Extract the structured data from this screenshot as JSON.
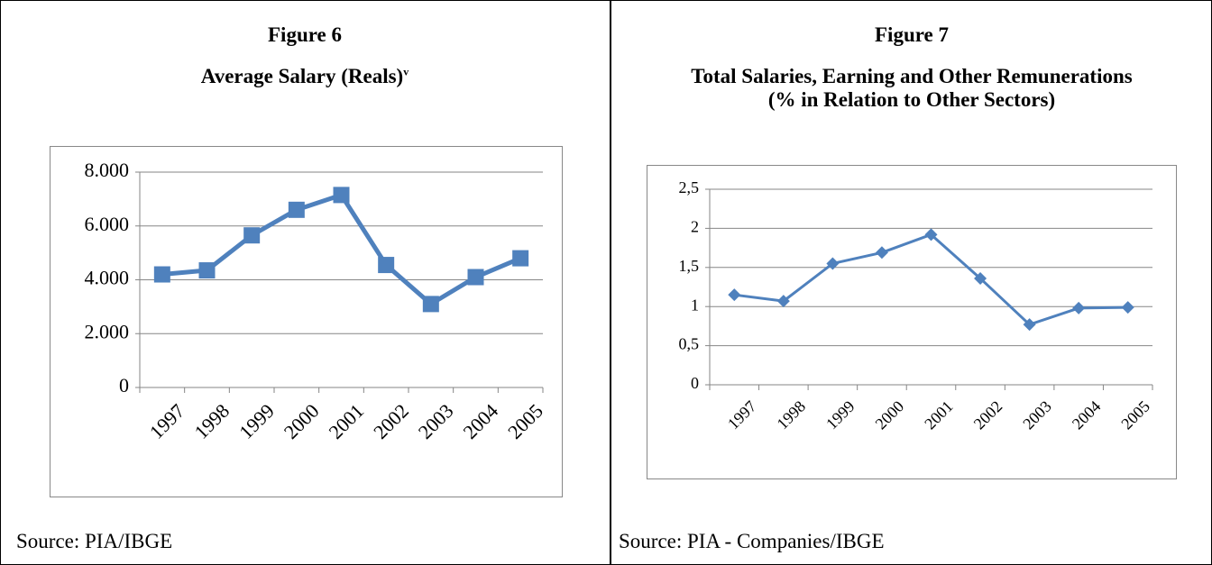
{
  "chart_data": [
    {
      "type": "line",
      "figure": "Figure 6",
      "title": "Average Salary (Reals)",
      "title_superscript": "v",
      "categories": [
        "1997",
        "1998",
        "1999",
        "2000",
        "2001",
        "2002",
        "2003",
        "2004",
        "2005"
      ],
      "values": [
        4200,
        4350,
        5650,
        6600,
        7150,
        4550,
        3100,
        4100,
        4800
      ],
      "color": "#4f81bd",
      "marker": "square",
      "ylim": [
        0,
        8000
      ],
      "yticks": [
        0,
        {
          "value": 2000,
          "label": "2.000"
        },
        {
          "value": 4000,
          "label": "4.000"
        },
        {
          "value": 6000,
          "label": "6.000"
        },
        {
          "value": 8000,
          "label": "8.000"
        }
      ],
      "grid": true,
      "source": "Source: PIA/IBGE"
    },
    {
      "type": "line",
      "figure": "Figure 7",
      "title": [
        "Total Salaries, Earning and Other Remunerations",
        "(% in Relation to Other Sectors)"
      ],
      "categories": [
        "1997",
        "1998",
        "1999",
        "2000",
        "2001",
        "2002",
        "2003",
        "2004",
        "2005"
      ],
      "values": [
        1.15,
        1.07,
        1.55,
        1.69,
        1.92,
        1.36,
        0.77,
        0.98,
        0.99
      ],
      "color": "#4f81bd",
      "marker": "diamond",
      "ylim": [
        0,
        2.5
      ],
      "yticks": [
        0,
        {
          "value": 0.5,
          "label": "0,5"
        },
        1,
        {
          "value": 1.5,
          "label": "1,5"
        },
        2,
        {
          "value": 2.5,
          "label": "2,5"
        }
      ],
      "grid": true,
      "source": "Source: PIA - Companies/IBGE"
    }
  ]
}
